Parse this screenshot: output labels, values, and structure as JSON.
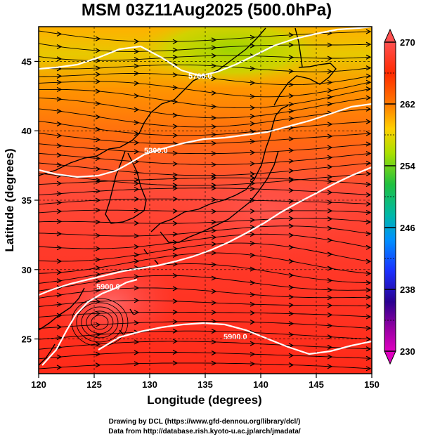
{
  "title": "MSM 03Z11Aug2025 (500.0hPa)",
  "xlabel": "Longitude (degrees)",
  "ylabel": "Latitude  (degrees)",
  "x_ticks": [
    "120",
    "125",
    "130",
    "135",
    "140",
    "145",
    "150"
  ],
  "y_ticks": [
    "25",
    "30",
    "35",
    "40",
    "45"
  ],
  "colorbar": {
    "labels": [
      "270",
      "262",
      "254",
      "246",
      "238",
      "230"
    ],
    "min": 230,
    "max": 270,
    "colors": [
      "#ff5a5a",
      "#ff3b00",
      "#ff8c00",
      "#ffd000",
      "#b0e000",
      "#2ecc40",
      "#00b8b8",
      "#0080ff",
      "#1a1aff",
      "#4b0082",
      "#c000c0"
    ]
  },
  "contours": [
    {
      "label": "5700.0",
      "lat_ref": 45.5
    },
    {
      "label": "5800.0",
      "lat_ref": 38.3
    },
    {
      "label": "5900.0",
      "lat_ref": 28.5
    },
    {
      "label": "5900.0",
      "lat_ref": 25.8
    }
  ],
  "credits": {
    "line1": "Drawing by DCL (https://www.gfd-dennou.org/library/dcl/)",
    "line2": "Data from http://database.rish.kyoto-u.ac.jp/arch/jmadata/"
  },
  "chart_data": {
    "type": "heatmap",
    "title": "MSM 03Z11Aug2025 (500.0hPa)",
    "xlabel": "Longitude (degrees)",
    "ylabel": "Latitude  (degrees)",
    "xlim": [
      120,
      150
    ],
    "ylim": [
      22.5,
      47.5
    ],
    "colorbar_range": [
      230,
      270
    ],
    "colorbar_ticks": [
      230,
      238,
      246,
      254,
      262,
      270
    ],
    "geopotential_contours": [
      5700,
      5800,
      5900
    ]
  }
}
